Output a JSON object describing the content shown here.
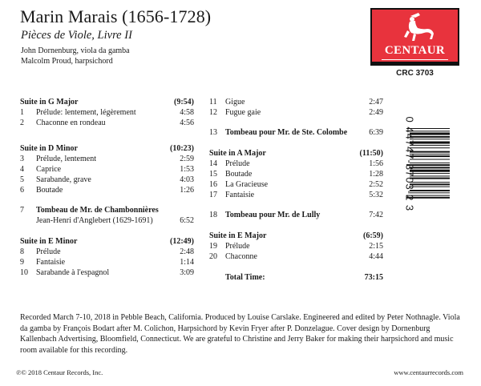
{
  "header": {
    "title": "Marin Marais (1656-1728)",
    "subtitle": "Pièces de Viole, Livre II",
    "performers": [
      "John Dornenburg, viola da gamba",
      "Malcolm Proud, harpsichord"
    ]
  },
  "logo": {
    "brand": "CENTAUR",
    "catalog": "CRC 3703",
    "color": "#e8333d"
  },
  "tracks_left": [
    {
      "type": "suite",
      "title": "Suite in G Major",
      "duration": "(9:54)"
    },
    {
      "num": "1",
      "title": "Prélude: lentement, légèrement",
      "duration": "4:58"
    },
    {
      "num": "2",
      "title": "Chaconne en rondeau",
      "duration": "4:56"
    },
    {
      "type": "suite",
      "title": "Suite in D Minor",
      "duration": "(10:23)"
    },
    {
      "num": "3",
      "title": "Prélude, lentement",
      "duration": "2:59"
    },
    {
      "num": "4",
      "title": "Caprice",
      "duration": "1:53"
    },
    {
      "num": "5",
      "title": "Sarabande, grave",
      "duration": "4:03"
    },
    {
      "num": "6",
      "title": "Boutade",
      "duration": "1:26"
    },
    {
      "num": "7",
      "title": "Tombeau de Mr. de Chambonnières",
      "duration": "",
      "bold": true
    },
    {
      "num": "",
      "title": "Jean-Henri d'Anglebert (1629-1691)",
      "duration": "6:52"
    },
    {
      "type": "suite",
      "title": "Suite in E Minor",
      "duration": "(12:49)"
    },
    {
      "num": "8",
      "title": "Prélude",
      "duration": "2:48"
    },
    {
      "num": "9",
      "title": "Fantaisie",
      "duration": "1:14"
    },
    {
      "num": "10",
      "title": "Sarabande à l'espagnol",
      "duration": "3:09"
    }
  ],
  "tracks_right": [
    {
      "num": "11",
      "title": "Gigue",
      "duration": "2:47"
    },
    {
      "num": "12",
      "title": "Fugue gaie",
      "duration": "2:49"
    },
    {
      "num": "13",
      "title": "Tombeau pour Mr. de Ste. Colombe",
      "duration": "6:39",
      "bold": true
    },
    {
      "type": "suite",
      "title": "Suite in A Major",
      "duration": "(11:50)"
    },
    {
      "num": "14",
      "title": "Prélude",
      "duration": "1:56"
    },
    {
      "num": "15",
      "title": "Boutade",
      "duration": "1:28"
    },
    {
      "num": "16",
      "title": "La Gracieuse",
      "duration": "2:52"
    },
    {
      "num": "17",
      "title": "Fantaisie",
      "duration": "5:32"
    },
    {
      "num": "18",
      "title": "Tombeau pour Mr. de Lully",
      "duration": "7:42",
      "bold": true
    },
    {
      "type": "suite",
      "title": "Suite in E Major",
      "duration": "(6:59)"
    },
    {
      "num": "19",
      "title": "Prélude",
      "duration": "2:15"
    },
    {
      "num": "20",
      "title": "Chaconne",
      "duration": "4:44"
    },
    {
      "num": "",
      "title": "Total Time:",
      "duration": "73:15",
      "bold": true
    }
  ],
  "barcode_number": "0 44747-3703-2 3",
  "notes": "Recorded March 7-10, 2018 in Pebble Beach, California. Produced by Louise Carslake. Engineered and edited by Peter Nothnagle. Viola da gamba by François Bodart after M. Colichon, Harpsichord by Kevin Fryer after P. Donzelague. Cover design by Dornenburg Kallenbach Advertising, Bloomfield, Connecticut. We are grateful to Christine and Jerry Baker for making their harpsichord and music room available for this recording.",
  "footer": {
    "copyright": "℗© 2018 Centaur Records, Inc.",
    "website": "www.centaurrecords.com"
  }
}
